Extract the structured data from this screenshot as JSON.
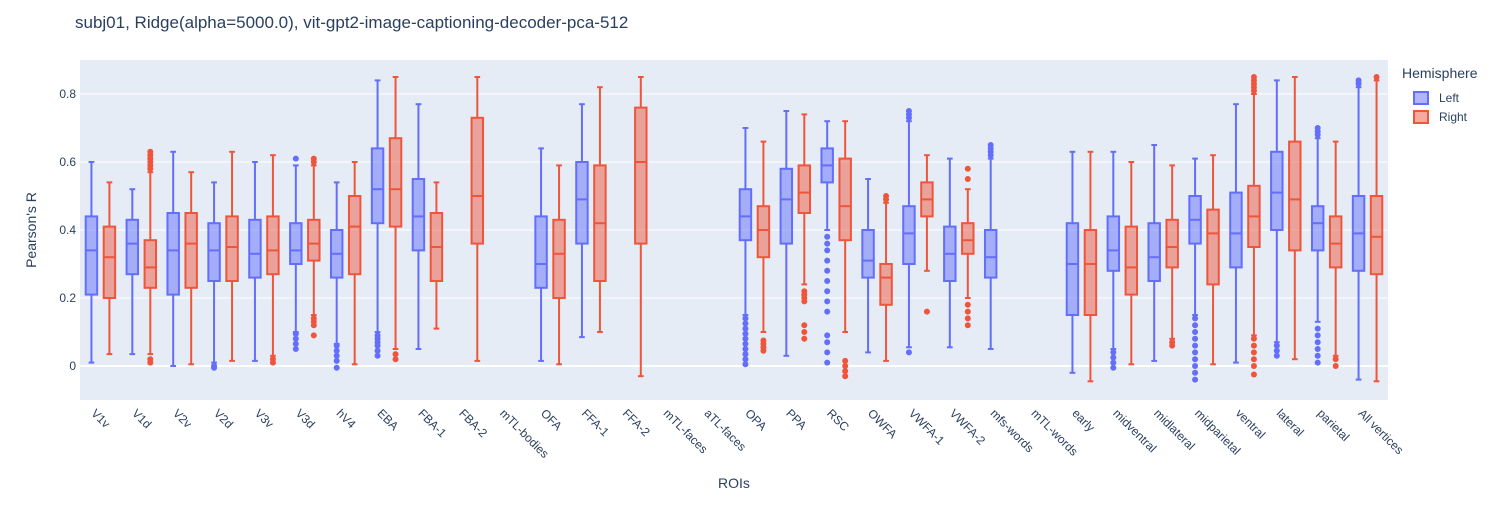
{
  "chart_data": {
    "type": "box",
    "title": "subj01, Ridge(alpha=5000.0), vit-gpt2-image-captioning-decoder-pca-512",
    "xlabel": "ROIs",
    "ylabel": "Pearson's R",
    "ylim": [
      -0.1,
      0.9
    ],
    "yticks": [
      0,
      0.2,
      0.4,
      0.6,
      0.8
    ],
    "ytick_labels": [
      "0",
      "0.2",
      "0.4",
      "0.6",
      "0.8"
    ],
    "grid": true,
    "legend": {
      "title": "Hemisphere",
      "placement": "top-right"
    },
    "categories": [
      "V1v",
      "V1d",
      "V2v",
      "V2d",
      "V3v",
      "V3d",
      "hV4",
      "EBA",
      "FBA-1",
      "FBA-2",
      "mTL-bodies",
      "OFA",
      "FFA-1",
      "FFA-2",
      "mTL-faces",
      "aTL-faces",
      "OPA",
      "PPA",
      "RSC",
      "OWFA",
      "VWFA-1",
      "VWFA-2",
      "mfs-words",
      "mTL-words",
      "early",
      "midventral",
      "midlateral",
      "midparietal",
      "ventral",
      "lateral",
      "parietal",
      "All vertices"
    ],
    "series": [
      {
        "name": "Left",
        "color": "#636efa",
        "fill": "rgba(99,110,250,0.5)",
        "boxes": [
          {
            "min": 0.01,
            "q1": 0.21,
            "median": 0.34,
            "q3": 0.44,
            "max": 0.6,
            "outliers": []
          },
          {
            "min": 0.035,
            "q1": 0.27,
            "median": 0.36,
            "q3": 0.43,
            "max": 0.52,
            "outliers": []
          },
          {
            "min": 0.0,
            "q1": 0.21,
            "median": 0.34,
            "q3": 0.45,
            "max": 0.63,
            "outliers": []
          },
          {
            "min": 0.01,
            "q1": 0.25,
            "median": 0.34,
            "q3": 0.42,
            "max": 0.54,
            "outliers": [
              -0.005,
              0.0
            ]
          },
          {
            "min": 0.015,
            "q1": 0.26,
            "median": 0.33,
            "q3": 0.43,
            "max": 0.6,
            "outliers": []
          },
          {
            "min": 0.1,
            "q1": 0.3,
            "median": 0.34,
            "q3": 0.42,
            "max": 0.59,
            "outliers": [
              0.05,
              0.065,
              0.08,
              0.095,
              0.61
            ]
          },
          {
            "min": 0.065,
            "q1": 0.26,
            "median": 0.33,
            "q3": 0.4,
            "max": 0.54,
            "outliers": [
              -0.005,
              0.015,
              0.03,
              0.045,
              0.06
            ]
          },
          {
            "min": 0.1,
            "q1": 0.42,
            "median": 0.52,
            "q3": 0.64,
            "max": 0.84,
            "outliers": [
              0.03,
              0.045,
              0.06,
              0.07,
              0.08,
              0.09
            ]
          },
          {
            "min": 0.05,
            "q1": 0.34,
            "median": 0.44,
            "q3": 0.55,
            "max": 0.77,
            "outliers": []
          },
          null,
          null,
          {
            "min": 0.015,
            "q1": 0.23,
            "median": 0.3,
            "q3": 0.44,
            "max": 0.64,
            "outliers": []
          },
          {
            "min": 0.085,
            "q1": 0.36,
            "median": 0.49,
            "q3": 0.6,
            "max": 0.77,
            "outliers": []
          },
          null,
          null,
          null,
          {
            "min": 0.15,
            "q1": 0.37,
            "median": 0.44,
            "q3": 0.52,
            "max": 0.7,
            "outliers": [
              0.005,
              0.02,
              0.035,
              0.05,
              0.065,
              0.08,
              0.095,
              0.11,
              0.125,
              0.14
            ]
          },
          {
            "min": 0.03,
            "q1": 0.36,
            "median": 0.49,
            "q3": 0.58,
            "max": 0.75,
            "outliers": []
          },
          {
            "min": 0.4,
            "q1": 0.54,
            "median": 0.59,
            "q3": 0.64,
            "max": 0.72,
            "outliers": [
              0.01,
              0.04,
              0.07,
              0.09,
              0.16,
              0.19,
              0.22,
              0.25,
              0.28,
              0.31,
              0.34,
              0.36,
              0.38
            ]
          },
          {
            "min": 0.04,
            "q1": 0.26,
            "median": 0.31,
            "q3": 0.4,
            "max": 0.55,
            "outliers": []
          },
          {
            "min": 0.055,
            "q1": 0.3,
            "median": 0.39,
            "q3": 0.47,
            "max": 0.72,
            "outliers": [
              0.04,
              0.73,
              0.74,
              0.75
            ]
          },
          {
            "min": 0.055,
            "q1": 0.25,
            "median": 0.33,
            "q3": 0.41,
            "max": 0.61,
            "outliers": []
          },
          {
            "min": 0.05,
            "q1": 0.26,
            "median": 0.32,
            "q3": 0.4,
            "max": 0.61,
            "outliers": [
              0.62,
              0.63,
              0.64,
              0.65
            ]
          },
          null,
          {
            "min": -0.02,
            "q1": 0.15,
            "median": 0.3,
            "q3": 0.42,
            "max": 0.63,
            "outliers": []
          },
          {
            "min": 0.05,
            "q1": 0.28,
            "median": 0.34,
            "q3": 0.44,
            "max": 0.63,
            "outliers": [
              -0.005,
              0.01,
              0.025,
              0.04
            ]
          },
          {
            "min": 0.015,
            "q1": 0.25,
            "median": 0.32,
            "q3": 0.42,
            "max": 0.65,
            "outliers": []
          },
          {
            "min": 0.15,
            "q1": 0.36,
            "median": 0.43,
            "q3": 0.5,
            "max": 0.61,
            "outliers": [
              -0.04,
              -0.02,
              0.0,
              0.02,
              0.04,
              0.06,
              0.08,
              0.1,
              0.12,
              0.14
            ]
          },
          {
            "min": 0.01,
            "q1": 0.29,
            "median": 0.39,
            "q3": 0.51,
            "max": 0.77,
            "outliers": []
          },
          {
            "min": 0.07,
            "q1": 0.4,
            "median": 0.51,
            "q3": 0.63,
            "max": 0.84,
            "outliers": [
              0.03,
              0.045,
              0.06
            ]
          },
          {
            "min": 0.13,
            "q1": 0.34,
            "median": 0.42,
            "q3": 0.47,
            "max": 0.67,
            "outliers": [
              0.01,
              0.03,
              0.05,
              0.07,
              0.09,
              0.11,
              0.68,
              0.69,
              0.7
            ]
          },
          {
            "min": -0.04,
            "q1": 0.28,
            "median": 0.39,
            "q3": 0.5,
            "max": 0.82,
            "outliers": [
              0.83,
              0.84
            ]
          }
        ]
      },
      {
        "name": "Right",
        "color": "#ef553b",
        "fill": "rgba(239,85,59,0.5)",
        "boxes": [
          {
            "min": 0.035,
            "q1": 0.2,
            "median": 0.32,
            "q3": 0.41,
            "max": 0.54,
            "outliers": []
          },
          {
            "min": 0.035,
            "q1": 0.23,
            "median": 0.29,
            "q3": 0.37,
            "max": 0.57,
            "outliers": [
              0.01,
              0.02,
              0.58,
              0.59,
              0.6,
              0.61,
              0.62,
              0.63
            ]
          },
          {
            "min": 0.005,
            "q1": 0.23,
            "median": 0.36,
            "q3": 0.45,
            "max": 0.57,
            "outliers": []
          },
          {
            "min": 0.015,
            "q1": 0.25,
            "median": 0.35,
            "q3": 0.44,
            "max": 0.63,
            "outliers": []
          },
          {
            "min": 0.03,
            "q1": 0.27,
            "median": 0.34,
            "q3": 0.44,
            "max": 0.62,
            "outliers": [
              0.01,
              0.02
            ]
          },
          {
            "min": 0.15,
            "q1": 0.31,
            "median": 0.36,
            "q3": 0.43,
            "max": 0.59,
            "outliers": [
              0.09,
              0.12,
              0.13,
              0.14,
              0.6,
              0.61
            ]
          },
          {
            "min": 0.005,
            "q1": 0.27,
            "median": 0.41,
            "q3": 0.5,
            "max": 0.6,
            "outliers": []
          },
          {
            "min": 0.05,
            "q1": 0.41,
            "median": 0.52,
            "q3": 0.67,
            "max": 0.85,
            "outliers": [
              0.02,
              0.035
            ]
          },
          {
            "min": 0.11,
            "q1": 0.25,
            "median": 0.35,
            "q3": 0.45,
            "max": 0.54,
            "outliers": []
          },
          {
            "min": 0.015,
            "q1": 0.36,
            "median": 0.5,
            "q3": 0.73,
            "max": 0.85,
            "outliers": []
          },
          null,
          {
            "min": 0.005,
            "q1": 0.2,
            "median": 0.33,
            "q3": 0.43,
            "max": 0.59,
            "outliers": []
          },
          {
            "min": 0.1,
            "q1": 0.25,
            "median": 0.42,
            "q3": 0.59,
            "max": 0.82,
            "outliers": []
          },
          {
            "min": -0.03,
            "q1": 0.36,
            "median": 0.6,
            "q3": 0.76,
            "max": 0.85,
            "outliers": []
          },
          null,
          null,
          {
            "min": 0.1,
            "q1": 0.32,
            "median": 0.4,
            "q3": 0.47,
            "max": 0.66,
            "outliers": [
              0.045,
              0.055,
              0.065,
              0.075
            ]
          },
          {
            "min": 0.24,
            "q1": 0.45,
            "median": 0.51,
            "q3": 0.59,
            "max": 0.74,
            "outliers": [
              0.08,
              0.1,
              0.12,
              0.19,
              0.2,
              0.21,
              0.22
            ]
          },
          {
            "min": 0.1,
            "q1": 0.37,
            "median": 0.47,
            "q3": 0.61,
            "max": 0.72,
            "outliers": [
              -0.03,
              -0.015,
              0.0,
              0.015
            ]
          },
          {
            "min": 0.015,
            "q1": 0.18,
            "median": 0.26,
            "q3": 0.3,
            "max": 0.48,
            "outliers": [
              0.49,
              0.5
            ]
          },
          {
            "min": 0.28,
            "q1": 0.44,
            "median": 0.49,
            "q3": 0.54,
            "max": 0.62,
            "outliers": [
              0.16
            ]
          },
          {
            "min": 0.2,
            "q1": 0.33,
            "median": 0.37,
            "q3": 0.42,
            "max": 0.52,
            "outliers": [
              0.12,
              0.14,
              0.16,
              0.18,
              0.55,
              0.58
            ]
          },
          null,
          null,
          {
            "min": -0.045,
            "q1": 0.15,
            "median": 0.3,
            "q3": 0.4,
            "max": 0.63,
            "outliers": []
          },
          {
            "min": 0.005,
            "q1": 0.21,
            "median": 0.29,
            "q3": 0.41,
            "max": 0.6,
            "outliers": []
          },
          {
            "min": 0.08,
            "q1": 0.29,
            "median": 0.35,
            "q3": 0.43,
            "max": 0.59,
            "outliers": [
              0.06,
              0.07
            ]
          },
          {
            "min": 0.005,
            "q1": 0.24,
            "median": 0.39,
            "q3": 0.46,
            "max": 0.62,
            "outliers": []
          },
          {
            "min": 0.09,
            "q1": 0.35,
            "median": 0.44,
            "q3": 0.53,
            "max": 0.8,
            "outliers": [
              -0.025,
              0.0,
              0.02,
              0.04,
              0.06,
              0.08,
              0.81,
              0.82,
              0.83,
              0.84,
              0.85
            ]
          },
          {
            "min": 0.02,
            "q1": 0.34,
            "median": 0.49,
            "q3": 0.66,
            "max": 0.85,
            "outliers": []
          },
          {
            "min": 0.03,
            "q1": 0.29,
            "median": 0.36,
            "q3": 0.44,
            "max": 0.66,
            "outliers": [
              0.0,
              0.02
            ]
          },
          {
            "min": -0.045,
            "q1": 0.27,
            "median": 0.38,
            "q3": 0.5,
            "max": 0.84,
            "outliers": [
              0.85
            ]
          }
        ]
      }
    ]
  }
}
